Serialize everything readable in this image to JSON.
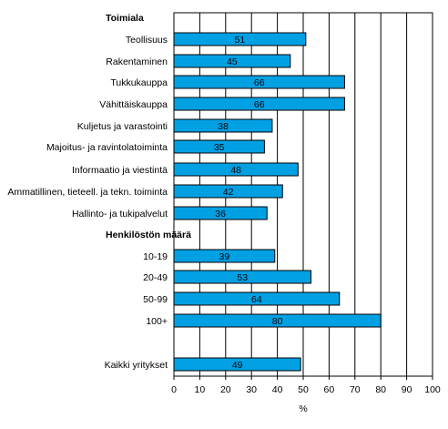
{
  "chart_data": {
    "type": "bar",
    "orientation": "horizontal",
    "bar_color": "#00a0e3",
    "bar_edge_color": "#000000",
    "grid": true,
    "xlabel": "%",
    "xlim": [
      0,
      100
    ],
    "xticks": [
      "0",
      "10",
      "20",
      "30",
      "40",
      "50",
      "60",
      "70",
      "80",
      "90",
      "100"
    ],
    "group_headers": [
      "Toimiala",
      "Henkilöstön määrä"
    ],
    "categories": [
      "Teollisuus",
      "Rakentaminen",
      "Tukkukauppa",
      "Vähittäiskauppa",
      "Kuljetus ja varastointi",
      "Majoitus- ja ravintolatoiminta",
      "Informaatio ja viestintä",
      "Ammatillinen, tieteell. ja tekn. toiminta",
      "Hallinto- ja tukipalvelut",
      "10-19",
      "20-49",
      "50-99",
      "100+",
      "Kaikki yritykset"
    ],
    "values": [
      51,
      45,
      66,
      66,
      38,
      35,
      48,
      42,
      36,
      39,
      53,
      64,
      80,
      49
    ],
    "value_labels": [
      "51",
      "45",
      "66",
      "66",
      "38",
      "35",
      "48",
      "42",
      "36",
      "39",
      "53",
      "64",
      "80",
      "49"
    ]
  }
}
